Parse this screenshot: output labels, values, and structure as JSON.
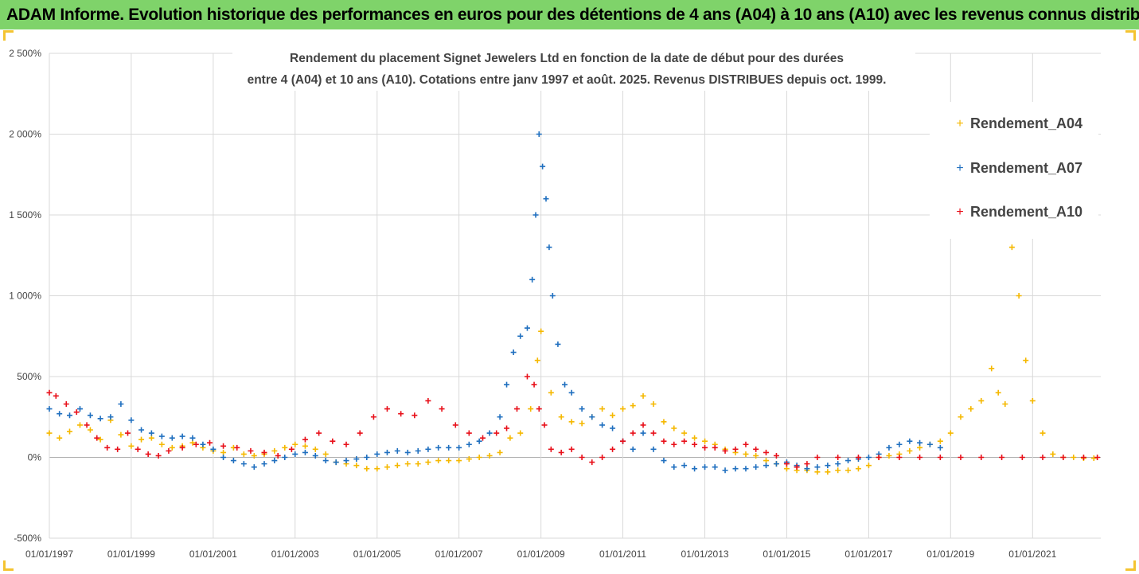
{
  "header": {
    "title": "ADAM Informe. Evolution historique des performances en euros pour des détentions de 4 ans (A04) à 10 ans (A10) avec les revenus connus distribués"
  },
  "colors": {
    "banner": "#7fd36a",
    "frame_corner": "#f4c430",
    "Rendement_A04": "#f5b800",
    "Rendement_A07": "#1f6fbf",
    "Rendement_A10": "#e8101a",
    "grid": "#d9d9d9"
  },
  "chart_data": {
    "type": "scatter",
    "marker": "plus",
    "title_lines": [
      "Rendement du placement Signet Jewelers Ltd en fonction de la date de début pour des durées",
      "entre 4 (A04) et 10 ans (A10). Cotations entre janv 1997 et août. 2025. Revenus DISTRIBUES depuis oct. 1999."
    ],
    "xlabel": "",
    "ylabel": "",
    "x_range": [
      "1997-01-01",
      "2022-09-01"
    ],
    "y_range_pct": [
      -500,
      2500
    ],
    "y_ticks": [
      "-500%",
      "0%",
      "500%",
      "1 000%",
      "1 500%",
      "2 000%",
      "2 500%"
    ],
    "x_ticks": [
      "01/01/1997",
      "01/01/1999",
      "01/01/2001",
      "01/01/2003",
      "01/01/2005",
      "01/01/2007",
      "01/01/2009",
      "01/01/2011",
      "01/01/2013",
      "01/01/2015",
      "01/01/2017",
      "01/01/2019",
      "01/01/2021"
    ],
    "grid": true,
    "legend_position": "right",
    "series": [
      {
        "name": "Rendement_A04",
        "x": [
          "1997-01-01",
          "1997-04-01",
          "1997-07-01",
          "1997-10-01",
          "1998-01-01",
          "1998-04-01",
          "1998-07-01",
          "1998-10-01",
          "1999-01-01",
          "1999-04-01",
          "1999-07-01",
          "1999-10-01",
          "2000-01-01",
          "2000-04-01",
          "2000-07-01",
          "2000-10-01",
          "2001-01-01",
          "2001-04-01",
          "2001-07-01",
          "2001-10-01",
          "2002-01-01",
          "2002-04-01",
          "2002-07-01",
          "2002-10-01",
          "2003-01-01",
          "2003-04-01",
          "2003-07-01",
          "2003-10-01",
          "2004-01-01",
          "2004-04-01",
          "2004-07-01",
          "2004-10-01",
          "2005-01-01",
          "2005-04-01",
          "2005-07-01",
          "2005-10-01",
          "2006-01-01",
          "2006-04-01",
          "2006-07-01",
          "2006-10-01",
          "2007-01-01",
          "2007-04-01",
          "2007-07-01",
          "2007-10-01",
          "2008-01-01",
          "2008-04-01",
          "2008-07-01",
          "2008-10-01",
          "2008-12-01",
          "2009-01-01",
          "2009-04-01",
          "2009-07-01",
          "2009-10-01",
          "2010-01-01",
          "2010-04-01",
          "2010-07-01",
          "2010-10-01",
          "2011-01-01",
          "2011-04-01",
          "2011-07-01",
          "2011-10-01",
          "2012-01-01",
          "2012-04-01",
          "2012-07-01",
          "2012-10-01",
          "2013-01-01",
          "2013-04-01",
          "2013-07-01",
          "2013-10-01",
          "2014-01-01",
          "2014-04-01",
          "2014-07-01",
          "2014-10-01",
          "2015-01-01",
          "2015-04-01",
          "2015-07-01",
          "2015-10-01",
          "2016-01-01",
          "2016-04-01",
          "2016-07-01",
          "2016-10-01",
          "2017-01-01",
          "2017-04-01",
          "2017-07-01",
          "2017-10-01",
          "2018-01-01",
          "2018-04-01",
          "2018-07-01",
          "2018-10-01",
          "2019-01-01",
          "2019-04-01",
          "2019-07-01",
          "2019-10-01",
          "2020-01-01",
          "2020-03-01",
          "2020-05-01",
          "2020-07-01",
          "2020-09-01",
          "2020-11-01",
          "2021-01-01",
          "2021-04-01",
          "2021-07-01",
          "2021-10-01",
          "2022-01-01",
          "2022-04-01",
          "2022-07-01"
        ],
        "values_pct": [
          150,
          120,
          160,
          200,
          170,
          110,
          230,
          140,
          70,
          110,
          120,
          80,
          60,
          70,
          90,
          60,
          40,
          30,
          60,
          20,
          10,
          20,
          40,
          60,
          80,
          70,
          50,
          20,
          -30,
          -40,
          -50,
          -70,
          -70,
          -60,
          -50,
          -40,
          -40,
          -30,
          -20,
          -20,
          -20,
          -10,
          0,
          10,
          30,
          120,
          150,
          300,
          600,
          780,
          400,
          250,
          220,
          210,
          250,
          300,
          260,
          300,
          320,
          380,
          330,
          220,
          180,
          150,
          120,
          100,
          80,
          50,
          30,
          20,
          10,
          -20,
          -40,
          -70,
          -80,
          -80,
          -90,
          -90,
          -80,
          -80,
          -70,
          -50,
          0,
          10,
          20,
          40,
          60,
          80,
          100,
          150,
          250,
          300,
          350,
          550,
          400,
          330,
          1300,
          1000,
          600,
          350,
          150,
          20,
          0,
          0,
          -5,
          -5
        ]
      },
      {
        "name": "Rendement_A07",
        "x": [
          "1997-01-01",
          "1997-04-01",
          "1997-07-01",
          "1997-10-01",
          "1998-01-01",
          "1998-04-01",
          "1998-07-01",
          "1998-10-01",
          "1999-01-01",
          "1999-04-01",
          "1999-07-01",
          "1999-10-01",
          "2000-01-01",
          "2000-04-01",
          "2000-07-01",
          "2000-10-01",
          "2001-01-01",
          "2001-04-01",
          "2001-07-01",
          "2001-10-01",
          "2002-01-01",
          "2002-04-01",
          "2002-07-01",
          "2002-10-01",
          "2003-01-01",
          "2003-04-01",
          "2003-07-01",
          "2003-10-01",
          "2004-01-01",
          "2004-04-01",
          "2004-07-01",
          "2004-10-01",
          "2005-01-01",
          "2005-04-01",
          "2005-07-01",
          "2005-10-01",
          "2006-01-01",
          "2006-04-01",
          "2006-07-01",
          "2006-10-01",
          "2007-01-01",
          "2007-04-01",
          "2007-07-01",
          "2007-10-01",
          "2008-01-01",
          "2008-03-01",
          "2008-05-01",
          "2008-07-01",
          "2008-09-01",
          "2008-10-15",
          "2008-11-15",
          "2008-12-15",
          "2009-01-15",
          "2009-02-15",
          "2009-03-15",
          "2009-04-15",
          "2009-06-01",
          "2009-08-01",
          "2009-10-01",
          "2010-01-01",
          "2010-04-01",
          "2010-07-01",
          "2010-10-01",
          "2011-01-01",
          "2011-04-01",
          "2011-07-01",
          "2011-10-01",
          "2012-01-01",
          "2012-04-01",
          "2012-07-01",
          "2012-10-01",
          "2013-01-01",
          "2013-04-01",
          "2013-07-01",
          "2013-10-01",
          "2014-01-01",
          "2014-04-01",
          "2014-07-01",
          "2014-10-01",
          "2015-01-01",
          "2015-04-01",
          "2015-07-01",
          "2015-10-01",
          "2016-01-01",
          "2016-04-01",
          "2016-07-01",
          "2016-10-01",
          "2017-01-01",
          "2017-04-01",
          "2017-07-01",
          "2017-10-01",
          "2018-01-01",
          "2018-04-01",
          "2018-07-01",
          "2018-10-01"
        ],
        "values_pct": [
          300,
          270,
          260,
          300,
          260,
          240,
          250,
          330,
          230,
          170,
          150,
          130,
          120,
          130,
          120,
          80,
          50,
          0,
          -20,
          -40,
          -60,
          -40,
          -20,
          0,
          20,
          30,
          10,
          -20,
          -30,
          -20,
          -10,
          0,
          20,
          30,
          40,
          30,
          40,
          50,
          60,
          60,
          60,
          80,
          100,
          150,
          250,
          450,
          650,
          750,
          800,
          1100,
          1500,
          2000,
          1800,
          1600,
          1300,
          1000,
          700,
          450,
          400,
          300,
          250,
          200,
          180,
          100,
          50,
          150,
          50,
          -20,
          -60,
          -50,
          -70,
          -60,
          -60,
          -80,
          -70,
          -70,
          -60,
          -50,
          -40,
          -30,
          -50,
          -70,
          -60,
          -50,
          -40,
          -20,
          -10,
          0,
          20,
          60,
          80,
          100,
          90,
          80,
          60
        ]
      },
      {
        "name": "Rendement_A10",
        "x": [
          "1997-01-01",
          "1997-03-01",
          "1997-06-01",
          "1997-09-01",
          "1997-12-01",
          "1998-03-01",
          "1998-06-01",
          "1998-09-01",
          "1998-12-01",
          "1999-03-01",
          "1999-06-01",
          "1999-09-01",
          "1999-12-01",
          "2000-04-01",
          "2000-08-01",
          "2000-12-01",
          "2001-04-01",
          "2001-08-01",
          "2001-12-01",
          "2002-04-01",
          "2002-08-01",
          "2002-12-01",
          "2003-04-01",
          "2003-08-01",
          "2003-12-01",
          "2004-04-01",
          "2004-08-01",
          "2004-12-01",
          "2005-04-01",
          "2005-08-01",
          "2005-12-01",
          "2006-04-01",
          "2006-08-01",
          "2006-12-01",
          "2007-04-01",
          "2007-08-01",
          "2007-12-01",
          "2008-03-01",
          "2008-06-01",
          "2008-09-01",
          "2008-11-01",
          "2008-12-15",
          "2009-02-01",
          "2009-04-01",
          "2009-07-01",
          "2009-10-01",
          "2010-01-01",
          "2010-04-01",
          "2010-07-01",
          "2010-10-01",
          "2011-01-01",
          "2011-04-01",
          "2011-07-01",
          "2011-10-01",
          "2012-01-01",
          "2012-04-01",
          "2012-07-01",
          "2012-10-01",
          "2013-01-01",
          "2013-04-01",
          "2013-07-01",
          "2013-10-01",
          "2014-01-01",
          "2014-04-01",
          "2014-07-01",
          "2014-10-01",
          "2015-01-01",
          "2015-04-01",
          "2015-07-01",
          "2015-10-01",
          "2016-04-01",
          "2016-10-01",
          "2017-04-01",
          "2017-10-01",
          "2018-04-01",
          "2018-10-01",
          "2019-04-01",
          "2019-10-01",
          "2020-04-01",
          "2020-10-01",
          "2021-04-01",
          "2021-10-01",
          "2022-04-01",
          "2022-08-01"
        ],
        "values_pct": [
          400,
          380,
          330,
          280,
          200,
          120,
          60,
          50,
          150,
          50,
          20,
          10,
          40,
          60,
          80,
          90,
          70,
          60,
          40,
          30,
          10,
          50,
          110,
          150,
          100,
          80,
          150,
          250,
          300,
          270,
          260,
          350,
          300,
          200,
          150,
          120,
          150,
          180,
          300,
          500,
          450,
          300,
          200,
          50,
          30,
          50,
          0,
          -30,
          0,
          50,
          100,
          150,
          200,
          150,
          100,
          80,
          100,
          80,
          60,
          60,
          40,
          50,
          80,
          50,
          30,
          10,
          -40,
          -60,
          -40,
          0,
          0,
          0,
          0,
          0,
          0,
          0,
          0,
          0,
          0,
          0,
          0,
          0,
          0,
          0
        ]
      }
    ]
  },
  "legend": {
    "items": [
      "Rendement_A04",
      "Rendement_A07",
      "Rendement_A10"
    ]
  }
}
